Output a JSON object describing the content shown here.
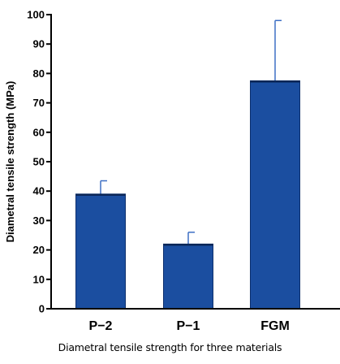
{
  "chart_data": {
    "type": "bar",
    "title": "",
    "ylabel": "Diametral tensile strength (MPa)",
    "xlabel": "",
    "categories": [
      "P−2",
      "P−1",
      "FGM"
    ],
    "values": [
      39,
      22,
      77.5
    ],
    "error_upper": [
      4.5,
      4,
      20.5
    ],
    "ylim": [
      0,
      100
    ],
    "yticks": [
      0,
      10,
      20,
      30,
      40,
      50,
      60,
      70,
      80,
      90,
      100
    ],
    "grid": false,
    "bar_color": "#1b4ea0",
    "bar_edge_color": "#0d2f6d",
    "error_color": "#3d6fc4"
  },
  "caption": "Diametral tensile strength for three materials"
}
